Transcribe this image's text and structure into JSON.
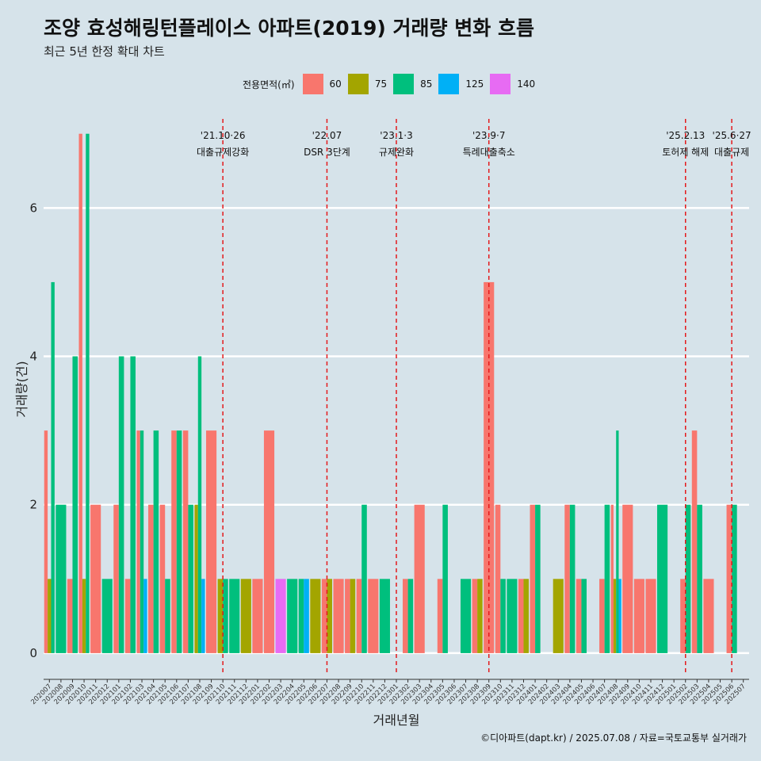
{
  "header": {
    "title": "조양 효성해링턴플레이스 아파트(2019) 거래량 변화 흐름",
    "subtitle": "최근 5년 한정 확대 차트"
  },
  "legend": {
    "title": "전용면적(㎡)",
    "items": [
      {
        "label": "60",
        "color": "#f8766d"
      },
      {
        "label": "75",
        "color": "#a3a500"
      },
      {
        "label": "85",
        "color": "#00bf7d"
      },
      {
        "label": "125",
        "color": "#00b0f6"
      },
      {
        "label": "140",
        "color": "#e76bf3"
      }
    ]
  },
  "caption": "©디아파트(dapt.kr) / 2025.07.08 / 자료=국토교통부 실거래가",
  "chart_data": {
    "type": "bar",
    "xlabel": "거래년월",
    "ylabel": "거래량(건)",
    "ylim": [
      -0.3,
      7.2
    ],
    "yticks": [
      0,
      2,
      4,
      6
    ],
    "categories": [
      "202007",
      "202008",
      "202009",
      "202010",
      "202011",
      "202012",
      "202101",
      "202102",
      "202103",
      "202104",
      "202105",
      "202106",
      "202107",
      "202108",
      "202109",
      "202110",
      "202111",
      "202112",
      "202201",
      "202202",
      "202203",
      "202204",
      "202205",
      "202206",
      "202207",
      "202208",
      "202209",
      "202210",
      "202211",
      "202212",
      "202301",
      "202302",
      "202303",
      "202304",
      "202305",
      "202306",
      "202307",
      "202308",
      "202309",
      "202310",
      "202311",
      "202312",
      "202401",
      "202402",
      "202403",
      "202404",
      "202405",
      "202406",
      "202407",
      "202408",
      "202409",
      "202410",
      "202411",
      "202412",
      "202501",
      "202502",
      "202503",
      "202504",
      "202505",
      "202506",
      "202507"
    ],
    "series": [
      {
        "name": "60",
        "color": "#f8766d",
        "values": [
          3,
          0,
          1,
          7,
          2,
          0,
          2,
          1,
          3,
          2,
          2,
          3,
          3,
          0,
          3,
          0,
          0,
          0,
          1,
          3,
          0,
          0,
          0,
          0,
          1,
          1,
          1,
          1,
          1,
          0,
          0,
          1,
          2,
          0,
          1,
          0,
          0,
          1,
          5,
          2,
          0,
          1,
          2,
          0,
          0,
          2,
          1,
          0,
          1,
          2,
          2,
          1,
          1,
          0,
          0,
          1,
          3,
          1,
          0,
          2,
          0
        ]
      },
      {
        "name": "75",
        "color": "#a3a500",
        "values": [
          1,
          0,
          0,
          1,
          0,
          0,
          0,
          0,
          0,
          0,
          0,
          0,
          0,
          2,
          0,
          1,
          0,
          1,
          0,
          0,
          0,
          0,
          0,
          1,
          1,
          0,
          1,
          0,
          0,
          0,
          0,
          0,
          0,
          0,
          0,
          0,
          0,
          1,
          0,
          0,
          0,
          1,
          0,
          0,
          1,
          0,
          0,
          0,
          0,
          1,
          0,
          0,
          0,
          0,
          0,
          0,
          0,
          0,
          0,
          0,
          0
        ]
      },
      {
        "name": "85",
        "color": "#00bf7d",
        "values": [
          5,
          2,
          4,
          7,
          0,
          1,
          4,
          4,
          3,
          3,
          1,
          3,
          2,
          4,
          0,
          1,
          1,
          0,
          0,
          0,
          0,
          1,
          1,
          0,
          0,
          0,
          0,
          2,
          0,
          1,
          0,
          1,
          0,
          0,
          2,
          0,
          1,
          0,
          0,
          1,
          1,
          0,
          2,
          0,
          0,
          2,
          1,
          0,
          2,
          3,
          0,
          0,
          0,
          2,
          0,
          2,
          2,
          0,
          0,
          2,
          0
        ]
      },
      {
        "name": "125",
        "color": "#00b0f6",
        "values": [
          0,
          0,
          0,
          0,
          0,
          0,
          0,
          0,
          1,
          0,
          0,
          0,
          0,
          1,
          0,
          0,
          0,
          0,
          0,
          0,
          0,
          0,
          1,
          0,
          0,
          0,
          0,
          0,
          0,
          0,
          0,
          0,
          0,
          0,
          0,
          0,
          0,
          0,
          0,
          0,
          0,
          0,
          0,
          0,
          0,
          0,
          0,
          0,
          0,
          1,
          0,
          0,
          0,
          0,
          0,
          0,
          0,
          0,
          0,
          0,
          0
        ]
      },
      {
        "name": "140",
        "color": "#e76bf3",
        "values": [
          0,
          0,
          0,
          0,
          0,
          0,
          0,
          0,
          0,
          0,
          0,
          0,
          0,
          0,
          0,
          0,
          0,
          0,
          0,
          0,
          1,
          0,
          0,
          0,
          0,
          0,
          0,
          0,
          0,
          0,
          0,
          0,
          0,
          0,
          0,
          0,
          0,
          0,
          0,
          0,
          0,
          0,
          0,
          0,
          0,
          0,
          0,
          0,
          0,
          0,
          0,
          0,
          0,
          0,
          0,
          0,
          0,
          0,
          0,
          0,
          0
        ]
      }
    ],
    "events": [
      {
        "month": "202110",
        "date": "'21.10·26",
        "label": "대출규제강화"
      },
      {
        "month": "202207",
        "date": "'22.07",
        "label": "DSR 3단계"
      },
      {
        "month": "202301",
        "date": "'23.1·3",
        "label": "규제완화"
      },
      {
        "month": "202309",
        "date": "'23.9·7",
        "label": "특례대출축소"
      },
      {
        "month": "202502",
        "date": "'25.2.13",
        "label": "토허제 해제"
      },
      {
        "month": "202506",
        "date": "'25.6·27",
        "label": "대출규제"
      }
    ]
  }
}
